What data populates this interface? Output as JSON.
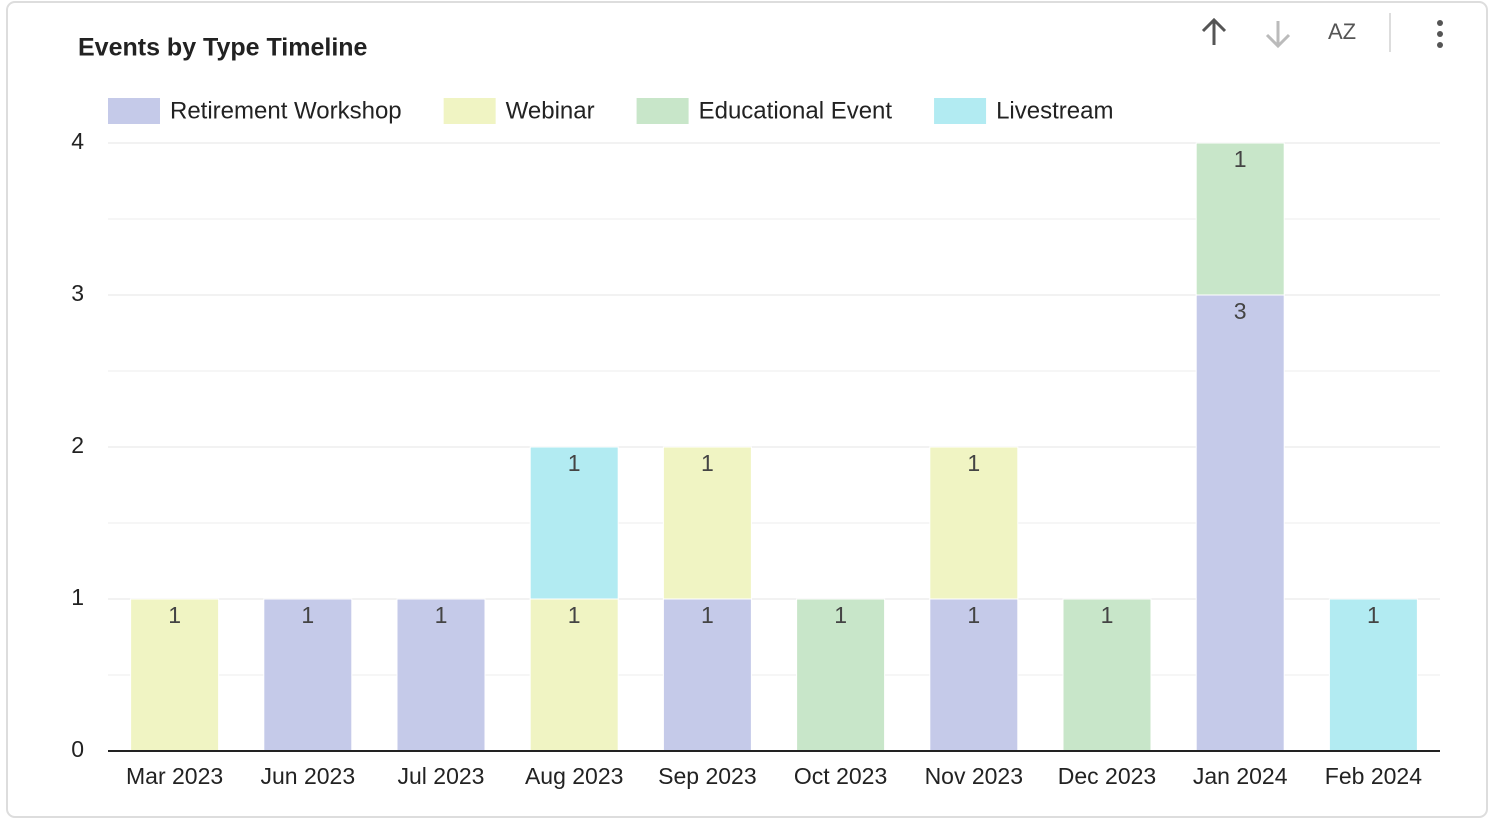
{
  "chart_data": {
    "type": "stacked_bar",
    "title": "Events by Type Timeline",
    "categories": [
      "Mar 2023",
      "Jun 2023",
      "Jul 2023",
      "Aug 2023",
      "Sep 2023",
      "Oct 2023",
      "Nov 2023",
      "Dec 2023",
      "Jan 2024",
      "Feb 2024"
    ],
    "series": [
      {
        "name": "Retirement Workshop",
        "color": "#c5cae9",
        "values": [
          null,
          1,
          1,
          null,
          1,
          null,
          1,
          null,
          3,
          null
        ]
      },
      {
        "name": "Webinar",
        "color": "#f0f4c3",
        "values": [
          1,
          null,
          null,
          1,
          1,
          null,
          1,
          null,
          null,
          null
        ]
      },
      {
        "name": "Educational Event",
        "color": "#c8e6c9",
        "values": [
          null,
          null,
          null,
          null,
          null,
          1,
          null,
          1,
          1,
          null
        ]
      },
      {
        "name": "Livestream",
        "color": "#b2ebf2",
        "values": [
          null,
          null,
          null,
          1,
          null,
          null,
          null,
          null,
          null,
          1
        ]
      }
    ],
    "ylim": [
      0,
      4
    ],
    "yticks": [
      0,
      1,
      2,
      3,
      4
    ],
    "grid": true,
    "legend": "top-left"
  },
  "toolbar": {
    "sort_label": "AZ"
  }
}
